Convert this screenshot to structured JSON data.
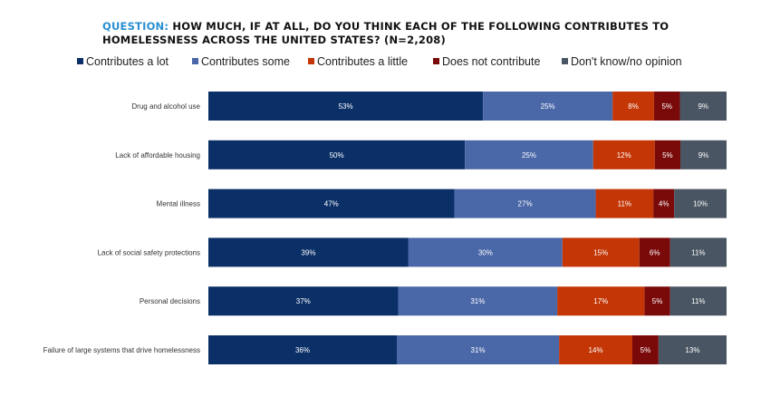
{
  "title": {
    "prefix": "QUESTION:",
    "text": "HOW MUCH, IF AT ALL, DO YOU THINK EACH OF THE FOLLOWING CONTRIBUTES TO HOMELESSNESS ACROSS THE UNITED STATES? (N=2,208)"
  },
  "chart_data": {
    "type": "bar",
    "orientation": "horizontal",
    "stacked": true,
    "percent_stacked": true,
    "legend_position": "top",
    "grid": false,
    "categories": [
      "Drug and alcohol use",
      "Lack of affordable housing",
      "Mental illness",
      "Lack of social safety protections",
      "Personal decisions",
      "Failure of large systems that drive homelessness"
    ],
    "series": [
      {
        "name": "Contributes a lot",
        "color": "#0b3068",
        "values": [
          53,
          50,
          47,
          39,
          37,
          36
        ]
      },
      {
        "name": "Contributes some",
        "color": "#4a67a8",
        "values": [
          25,
          25,
          27,
          30,
          31,
          31
        ]
      },
      {
        "name": "Contributes a little",
        "color": "#c43606",
        "values": [
          8,
          12,
          11,
          15,
          17,
          14
        ]
      },
      {
        "name": "Does not contribute",
        "color": "#7a0a0a",
        "values": [
          5,
          5,
          4,
          6,
          5,
          5
        ]
      },
      {
        "name": "Don't know/no opinion",
        "color": "#4a5563",
        "values": [
          9,
          9,
          10,
          11,
          11,
          13
        ]
      }
    ],
    "value_suffix": "%"
  }
}
